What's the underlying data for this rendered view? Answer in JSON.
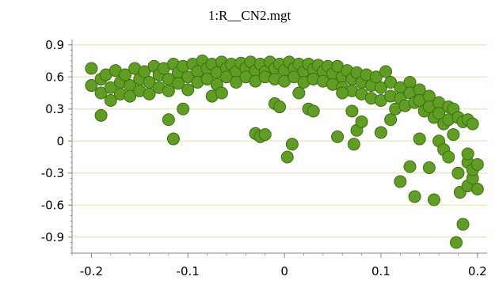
{
  "chart_data": {
    "type": "scatter",
    "title": "1:R__CN2.mgt",
    "xlabel": "",
    "ylabel": "",
    "xlim": [
      -0.22,
      0.21
    ],
    "ylim": [
      -1.05,
      0.95
    ],
    "xticks": [
      -0.2,
      -0.1,
      0,
      0.1,
      0.2
    ],
    "xtick_labels": [
      "-0.2",
      "-0.1",
      "0",
      "0.1",
      "0.2"
    ],
    "yticks": [
      0.9,
      0.6,
      0.3,
      0,
      -0.3,
      -0.6,
      -0.9
    ],
    "ytick_labels": [
      "0.9",
      "0.6",
      "0.3",
      "0",
      "-0.3",
      "-0.6",
      "-0.9"
    ],
    "grid": true,
    "colors": {
      "point_fill": "#5f9e23",
      "point_stroke": "#3d6e12",
      "grid": "#f1e6c6",
      "axis": "#888888",
      "plot_bg": "#ffffff"
    },
    "series": [
      {
        "points": [
          [
            -0.2,
            0.68
          ],
          [
            -0.2,
            0.52
          ],
          [
            -0.19,
            0.58
          ],
          [
            -0.19,
            0.45
          ],
          [
            -0.185,
            0.62
          ],
          [
            -0.18,
            0.5
          ],
          [
            -0.18,
            0.38
          ],
          [
            -0.175,
            0.66
          ],
          [
            -0.17,
            0.55
          ],
          [
            -0.17,
            0.44
          ],
          [
            -0.165,
            0.62
          ],
          [
            -0.16,
            0.52
          ],
          [
            -0.16,
            0.42
          ],
          [
            -0.155,
            0.68
          ],
          [
            -0.15,
            0.58
          ],
          [
            -0.15,
            0.47
          ],
          [
            -0.145,
            0.65
          ],
          [
            -0.14,
            0.55
          ],
          [
            -0.14,
            0.44
          ],
          [
            -0.135,
            0.7
          ],
          [
            -0.13,
            0.62
          ],
          [
            -0.13,
            0.5
          ],
          [
            -0.125,
            0.68
          ],
          [
            -0.12,
            0.58
          ],
          [
            -0.12,
            0.47
          ],
          [
            -0.115,
            0.72
          ],
          [
            -0.11,
            0.64
          ],
          [
            -0.11,
            0.54
          ],
          [
            -0.105,
            0.7
          ],
          [
            -0.1,
            0.6
          ],
          [
            -0.1,
            0.48
          ],
          [
            -0.095,
            0.72
          ],
          [
            -0.09,
            0.65
          ],
          [
            -0.09,
            0.55
          ],
          [
            -0.085,
            0.75
          ],
          [
            -0.08,
            0.68
          ],
          [
            -0.08,
            0.58
          ],
          [
            -0.075,
            0.72
          ],
          [
            -0.07,
            0.64
          ],
          [
            -0.07,
            0.53
          ],
          [
            -0.065,
            0.74
          ],
          [
            -0.06,
            0.68
          ],
          [
            -0.06,
            0.6
          ],
          [
            -0.055,
            0.72
          ],
          [
            -0.05,
            0.65
          ],
          [
            -0.05,
            0.55
          ],
          [
            -0.045,
            0.73
          ],
          [
            -0.04,
            0.68
          ],
          [
            -0.04,
            0.6
          ],
          [
            -0.035,
            0.74
          ],
          [
            -0.03,
            0.66
          ],
          [
            -0.03,
            0.56
          ],
          [
            -0.025,
            0.72
          ],
          [
            -0.02,
            0.65
          ],
          [
            -0.02,
            0.6
          ],
          [
            -0.015,
            0.74
          ],
          [
            -0.01,
            0.68
          ],
          [
            -0.01,
            0.58
          ],
          [
            -0.005,
            0.72
          ],
          [
            0,
            0.66
          ],
          [
            0,
            0.56
          ],
          [
            0.005,
            0.74
          ],
          [
            0.01,
            0.68
          ],
          [
            0.01,
            0.6
          ],
          [
            0.015,
            0.72
          ],
          [
            0.02,
            0.65
          ],
          [
            0.02,
            0.55
          ],
          [
            0.025,
            0.72
          ],
          [
            0.03,
            0.67
          ],
          [
            0.03,
            0.58
          ],
          [
            0.035,
            0.71
          ],
          [
            0.04,
            0.65
          ],
          [
            0.04,
            0.56
          ],
          [
            0.045,
            0.7
          ],
          [
            0.05,
            0.63
          ],
          [
            0.05,
            0.53
          ],
          [
            0.055,
            0.7
          ],
          [
            0.06,
            0.6
          ],
          [
            0.06,
            0.5
          ],
          [
            0.065,
            0.66
          ],
          [
            0.07,
            0.58
          ],
          [
            0.07,
            0.47
          ],
          [
            0.075,
            0.64
          ],
          [
            0.08,
            0.55
          ],
          [
            0.08,
            0.44
          ],
          [
            0.085,
            0.62
          ],
          [
            0.09,
            0.52
          ],
          [
            0.09,
            0.4
          ],
          [
            0.095,
            0.6
          ],
          [
            0.1,
            0.5
          ],
          [
            0.1,
            0.38
          ],
          [
            0.105,
            0.65
          ],
          [
            0.11,
            0.55
          ],
          [
            0.11,
            0.42
          ],
          [
            0.115,
            0.3
          ],
          [
            0.12,
            0.5
          ],
          [
            0.12,
            0.4
          ],
          [
            0.125,
            0.33
          ],
          [
            0.13,
            0.55
          ],
          [
            0.13,
            0.45
          ],
          [
            0.135,
            0.36
          ],
          [
            0.14,
            0.48
          ],
          [
            0.14,
            0.38
          ],
          [
            0.145,
            0.28
          ],
          [
            0.15,
            0.42
          ],
          [
            0.15,
            0.32
          ],
          [
            0.155,
            0.22
          ],
          [
            0.16,
            0.36
          ],
          [
            0.16,
            0.26
          ],
          [
            0.165,
            0.16
          ],
          [
            0.17,
            0.32
          ],
          [
            0.17,
            0.2
          ],
          [
            0.175,
            0.3
          ],
          [
            0.18,
            0.22
          ],
          [
            0.185,
            0.18
          ],
          [
            0.19,
            0.2
          ],
          [
            0.195,
            0.16
          ],
          [
            -0.19,
            0.24
          ],
          [
            -0.12,
            0.2
          ],
          [
            -0.115,
            0.02
          ],
          [
            -0.105,
            0.3
          ],
          [
            -0.075,
            0.42
          ],
          [
            -0.065,
            0.45
          ],
          [
            -0.03,
            0.07
          ],
          [
            -0.025,
            0.04
          ],
          [
            -0.02,
            0.06
          ],
          [
            -0.01,
            0.35
          ],
          [
            -0.005,
            0.32
          ],
          [
            0.003,
            -0.15
          ],
          [
            0.008,
            -0.03
          ],
          [
            0.015,
            0.45
          ],
          [
            0.025,
            0.3
          ],
          [
            0.03,
            0.28
          ],
          [
            0.055,
            0.04
          ],
          [
            0.06,
            0.45
          ],
          [
            0.07,
            0.28
          ],
          [
            0.072,
            -0.03
          ],
          [
            0.075,
            0.1
          ],
          [
            0.08,
            0.18
          ],
          [
            0.1,
            0.08
          ],
          [
            0.11,
            0.2
          ],
          [
            0.12,
            -0.38
          ],
          [
            0.13,
            -0.24
          ],
          [
            0.135,
            -0.52
          ],
          [
            0.14,
            0.02
          ],
          [
            0.15,
            -0.25
          ],
          [
            0.155,
            -0.55
          ],
          [
            0.16,
            0.0
          ],
          [
            0.165,
            -0.08
          ],
          [
            0.17,
            -0.15
          ],
          [
            0.175,
            0.06
          ],
          [
            0.178,
            -0.95
          ],
          [
            0.18,
            -0.3
          ],
          [
            0.182,
            -0.48
          ],
          [
            0.185,
            -0.78
          ],
          [
            0.19,
            -0.42
          ],
          [
            0.19,
            -0.2
          ],
          [
            0.195,
            -0.35
          ],
          [
            0.195,
            -0.27
          ],
          [
            0.2,
            -0.45
          ],
          [
            0.2,
            -0.22
          ],
          [
            0.19,
            -0.12
          ]
        ]
      }
    ]
  }
}
